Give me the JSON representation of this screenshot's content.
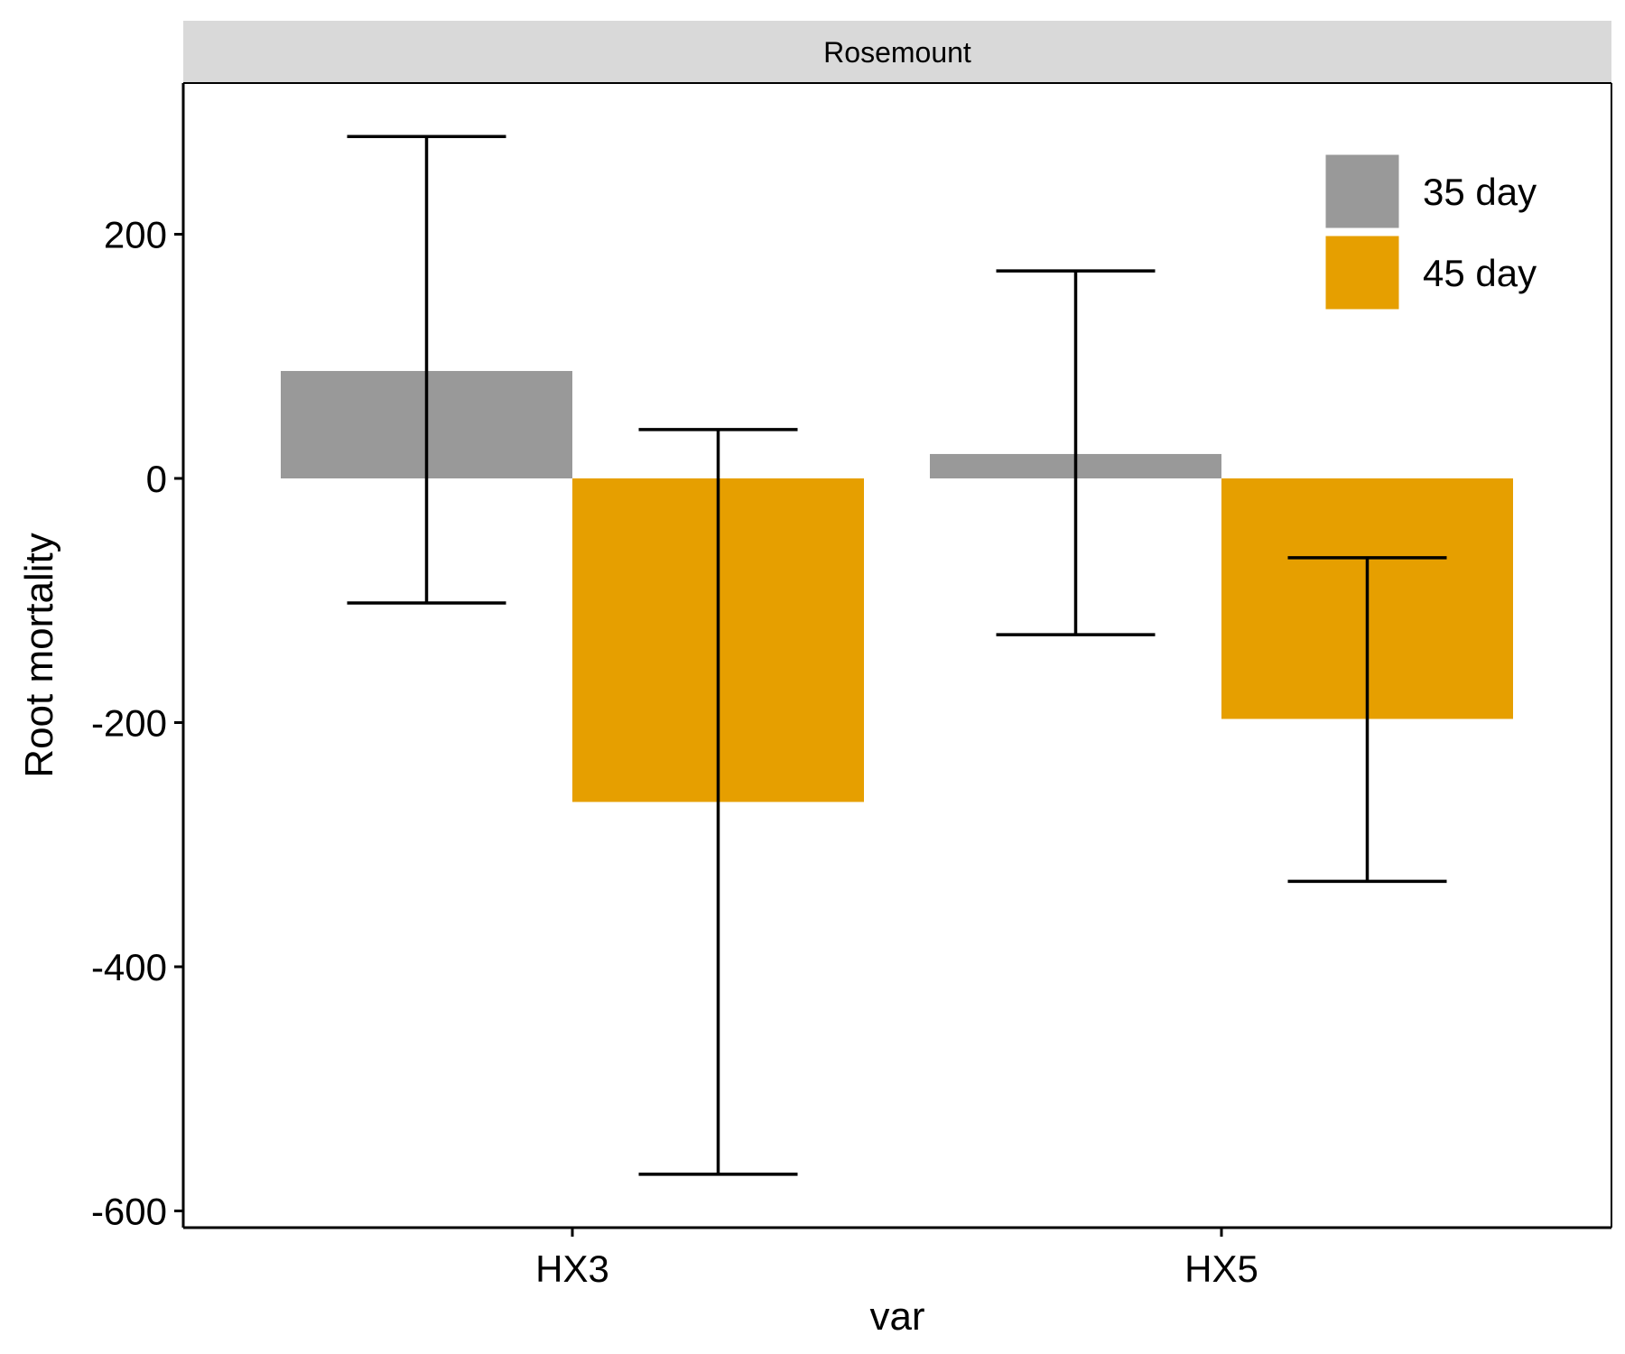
{
  "chart_data": {
    "type": "bar",
    "facet_label": "Rosemount",
    "categories": [
      "HX3",
      "HX5"
    ],
    "series": [
      {
        "name": "35 day",
        "color": "#999999",
        "values": [
          88,
          20
        ],
        "error_low": [
          -102,
          -128
        ],
        "error_high": [
          280,
          170
        ]
      },
      {
        "name": "45 day",
        "color": "#E69F00",
        "values": [
          -265,
          -197
        ],
        "error_low": [
          -570,
          -330
        ],
        "error_high": [
          40,
          -65
        ]
      }
    ],
    "xlabel": "var",
    "ylabel": "Root mortality",
    "ylim": [
      -610,
      320
    ],
    "yticks": [
      200,
      0,
      -200,
      -400,
      -600
    ],
    "grid": false,
    "legend_position": "top-right"
  }
}
